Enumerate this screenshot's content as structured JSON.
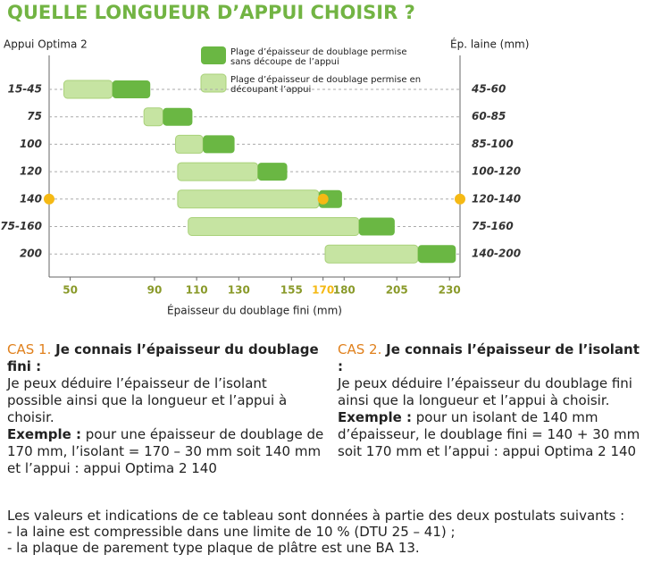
{
  "chart_data": {
    "type": "range-bar",
    "title": "QUELLE LONGUEUR D’APPUI CHOISIR ?",
    "y_label": "Appui Optima 2",
    "y2_label": "Ép. laine (mm)",
    "x_label": "Épaisseur du doublage fini (mm)",
    "categories": [
      "15-45",
      "75",
      "100",
      "120",
      "140",
      "75-160",
      "200"
    ],
    "right_labels": [
      "45-60",
      "60-85",
      "85-100",
      "100-120",
      "120-140",
      "75-160",
      "140-200"
    ],
    "series": [
      {
        "name": "Plage d’épaisseur de doublage permise sans découpe de l’appui",
        "color": "#6ab743",
        "values": [
          [
            70,
            88
          ],
          [
            94,
            108
          ],
          [
            113,
            128
          ],
          [
            139,
            153
          ],
          [
            168,
            179
          ],
          [
            187,
            204
          ],
          [
            215,
            233
          ]
        ]
      },
      {
        "name": "Plage d’épaisseur de doublage permise en découpant l’appui",
        "color": "#c6e4a2",
        "values": [
          [
            47,
            70
          ],
          [
            85,
            94
          ],
          [
            100,
            113
          ],
          [
            101,
            139
          ],
          [
            101,
            168
          ],
          [
            106,
            187
          ],
          [
            171,
            215
          ]
        ]
      }
    ],
    "xlim": [
      40,
      235
    ],
    "xticks": [
      50,
      90,
      110,
      130,
      155,
      170,
      180,
      205,
      230
    ],
    "highlight": {
      "x": 170,
      "color": "#f5b914"
    }
  },
  "cases": [
    {
      "label": "CAS 1.",
      "heading": "Je connais l’épaisseur du doublage fini :",
      "text": "Je peux déduire l’épaisseur de l’isolant possible ainsi que la longueur et l’appui à choisir.",
      "example_label": "Exemple :",
      "example": "pour une épaisseur de doublage de 170 mm, l’isolant = 170 – 30 mm soit 140 mm et l’appui : appui Optima 2 140"
    },
    {
      "label": "CAS 2.",
      "heading": "Je connais l’épaisseur de l’isolant :",
      "text": "Je peux déduire l’épaisseur du doublage fini ainsi que la longueur et l’appui à choisir.",
      "example_label": "Exemple :",
      "example": "pour un isolant de 140 mm d’épaisseur, le doublage fini = 140 + 30 mm soit 170 mm et l’appui : appui Optima 2 140"
    }
  ],
  "notes": {
    "intro": "Les valeurs et indications de ce tableau sont données à partie des deux postulats suivants :",
    "items": [
      "- la laine est compressible dans une limite de 10 % (DTU 25 – 41) ;",
      "- la plaque de parement type plaque de plâtre est une BA 13."
    ]
  }
}
